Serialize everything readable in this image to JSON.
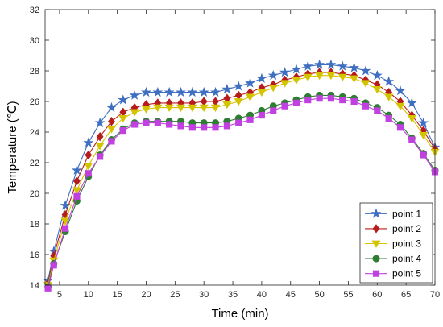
{
  "chart_data": {
    "type": "line",
    "title": "",
    "xlabel": "Time (min)",
    "ylabel": "Temperature (℃)",
    "xlim": [
      2.5,
      70
    ],
    "ylim": [
      14,
      32
    ],
    "xticks": [
      5,
      10,
      15,
      20,
      25,
      30,
      35,
      40,
      45,
      50,
      55,
      60,
      65,
      70
    ],
    "yticks": [
      14,
      16,
      18,
      20,
      22,
      24,
      26,
      28,
      30,
      32
    ],
    "grid": false,
    "legend_position": "bottom-right",
    "x": [
      3,
      4,
      6,
      8,
      10,
      12,
      14,
      16,
      18,
      20,
      22,
      24,
      26,
      28,
      30,
      32,
      34,
      36,
      38,
      40,
      42,
      44,
      46,
      48,
      50,
      52,
      54,
      56,
      58,
      60,
      62,
      64,
      66,
      68,
      70
    ],
    "series": [
      {
        "name": "point 1",
        "color": "#3f6fc1",
        "marker": "star",
        "values": [
          14.3,
          16.2,
          19.2,
          21.5,
          23.3,
          24.6,
          25.6,
          26.1,
          26.4,
          26.6,
          26.6,
          26.6,
          26.6,
          26.6,
          26.6,
          26.6,
          26.8,
          27.0,
          27.2,
          27.5,
          27.7,
          27.9,
          28.1,
          28.3,
          28.4,
          28.4,
          28.3,
          28.2,
          28.0,
          27.7,
          27.3,
          26.7,
          25.9,
          24.6,
          23.0
        ]
      },
      {
        "name": "point 2",
        "color": "#b71c1c",
        "marker": "diamond",
        "values": [
          14.1,
          15.9,
          18.6,
          20.8,
          22.5,
          23.7,
          24.7,
          25.3,
          25.6,
          25.8,
          25.9,
          25.9,
          25.9,
          25.9,
          26.0,
          26.0,
          26.2,
          26.4,
          26.6,
          26.9,
          27.1,
          27.4,
          27.6,
          27.8,
          27.9,
          27.9,
          27.8,
          27.7,
          27.4,
          27.1,
          26.6,
          26.0,
          25.1,
          24.1,
          22.9
        ]
      },
      {
        "name": "point 3",
        "color": "#d4c400",
        "marker": "triangle-down",
        "values": [
          14.0,
          15.6,
          18.2,
          20.2,
          21.8,
          23.1,
          24.2,
          24.9,
          25.3,
          25.5,
          25.6,
          25.6,
          25.6,
          25.6,
          25.6,
          25.6,
          25.8,
          26.0,
          26.3,
          26.6,
          26.9,
          27.2,
          27.4,
          27.6,
          27.7,
          27.7,
          27.6,
          27.5,
          27.2,
          26.8,
          26.3,
          25.7,
          24.9,
          23.8,
          22.7
        ]
      },
      {
        "name": "point 4",
        "color": "#2e7d32",
        "marker": "circle",
        "values": [
          13.9,
          15.4,
          17.5,
          19.5,
          21.1,
          22.5,
          23.5,
          24.2,
          24.6,
          24.7,
          24.7,
          24.7,
          24.7,
          24.6,
          24.6,
          24.6,
          24.7,
          24.9,
          25.1,
          25.4,
          25.7,
          25.9,
          26.1,
          26.3,
          26.4,
          26.4,
          26.3,
          26.2,
          25.9,
          25.6,
          25.1,
          24.5,
          23.6,
          22.6,
          21.5
        ]
      },
      {
        "name": "point 5",
        "color": "#c040e0",
        "marker": "square",
        "values": [
          13.8,
          15.3,
          17.7,
          19.8,
          21.3,
          22.4,
          23.4,
          24.1,
          24.5,
          24.6,
          24.6,
          24.5,
          24.4,
          24.3,
          24.3,
          24.3,
          24.4,
          24.6,
          24.8,
          25.1,
          25.4,
          25.7,
          25.9,
          26.1,
          26.2,
          26.2,
          26.1,
          26.0,
          25.7,
          25.4,
          24.9,
          24.3,
          23.5,
          22.5,
          21.4
        ]
      }
    ]
  }
}
